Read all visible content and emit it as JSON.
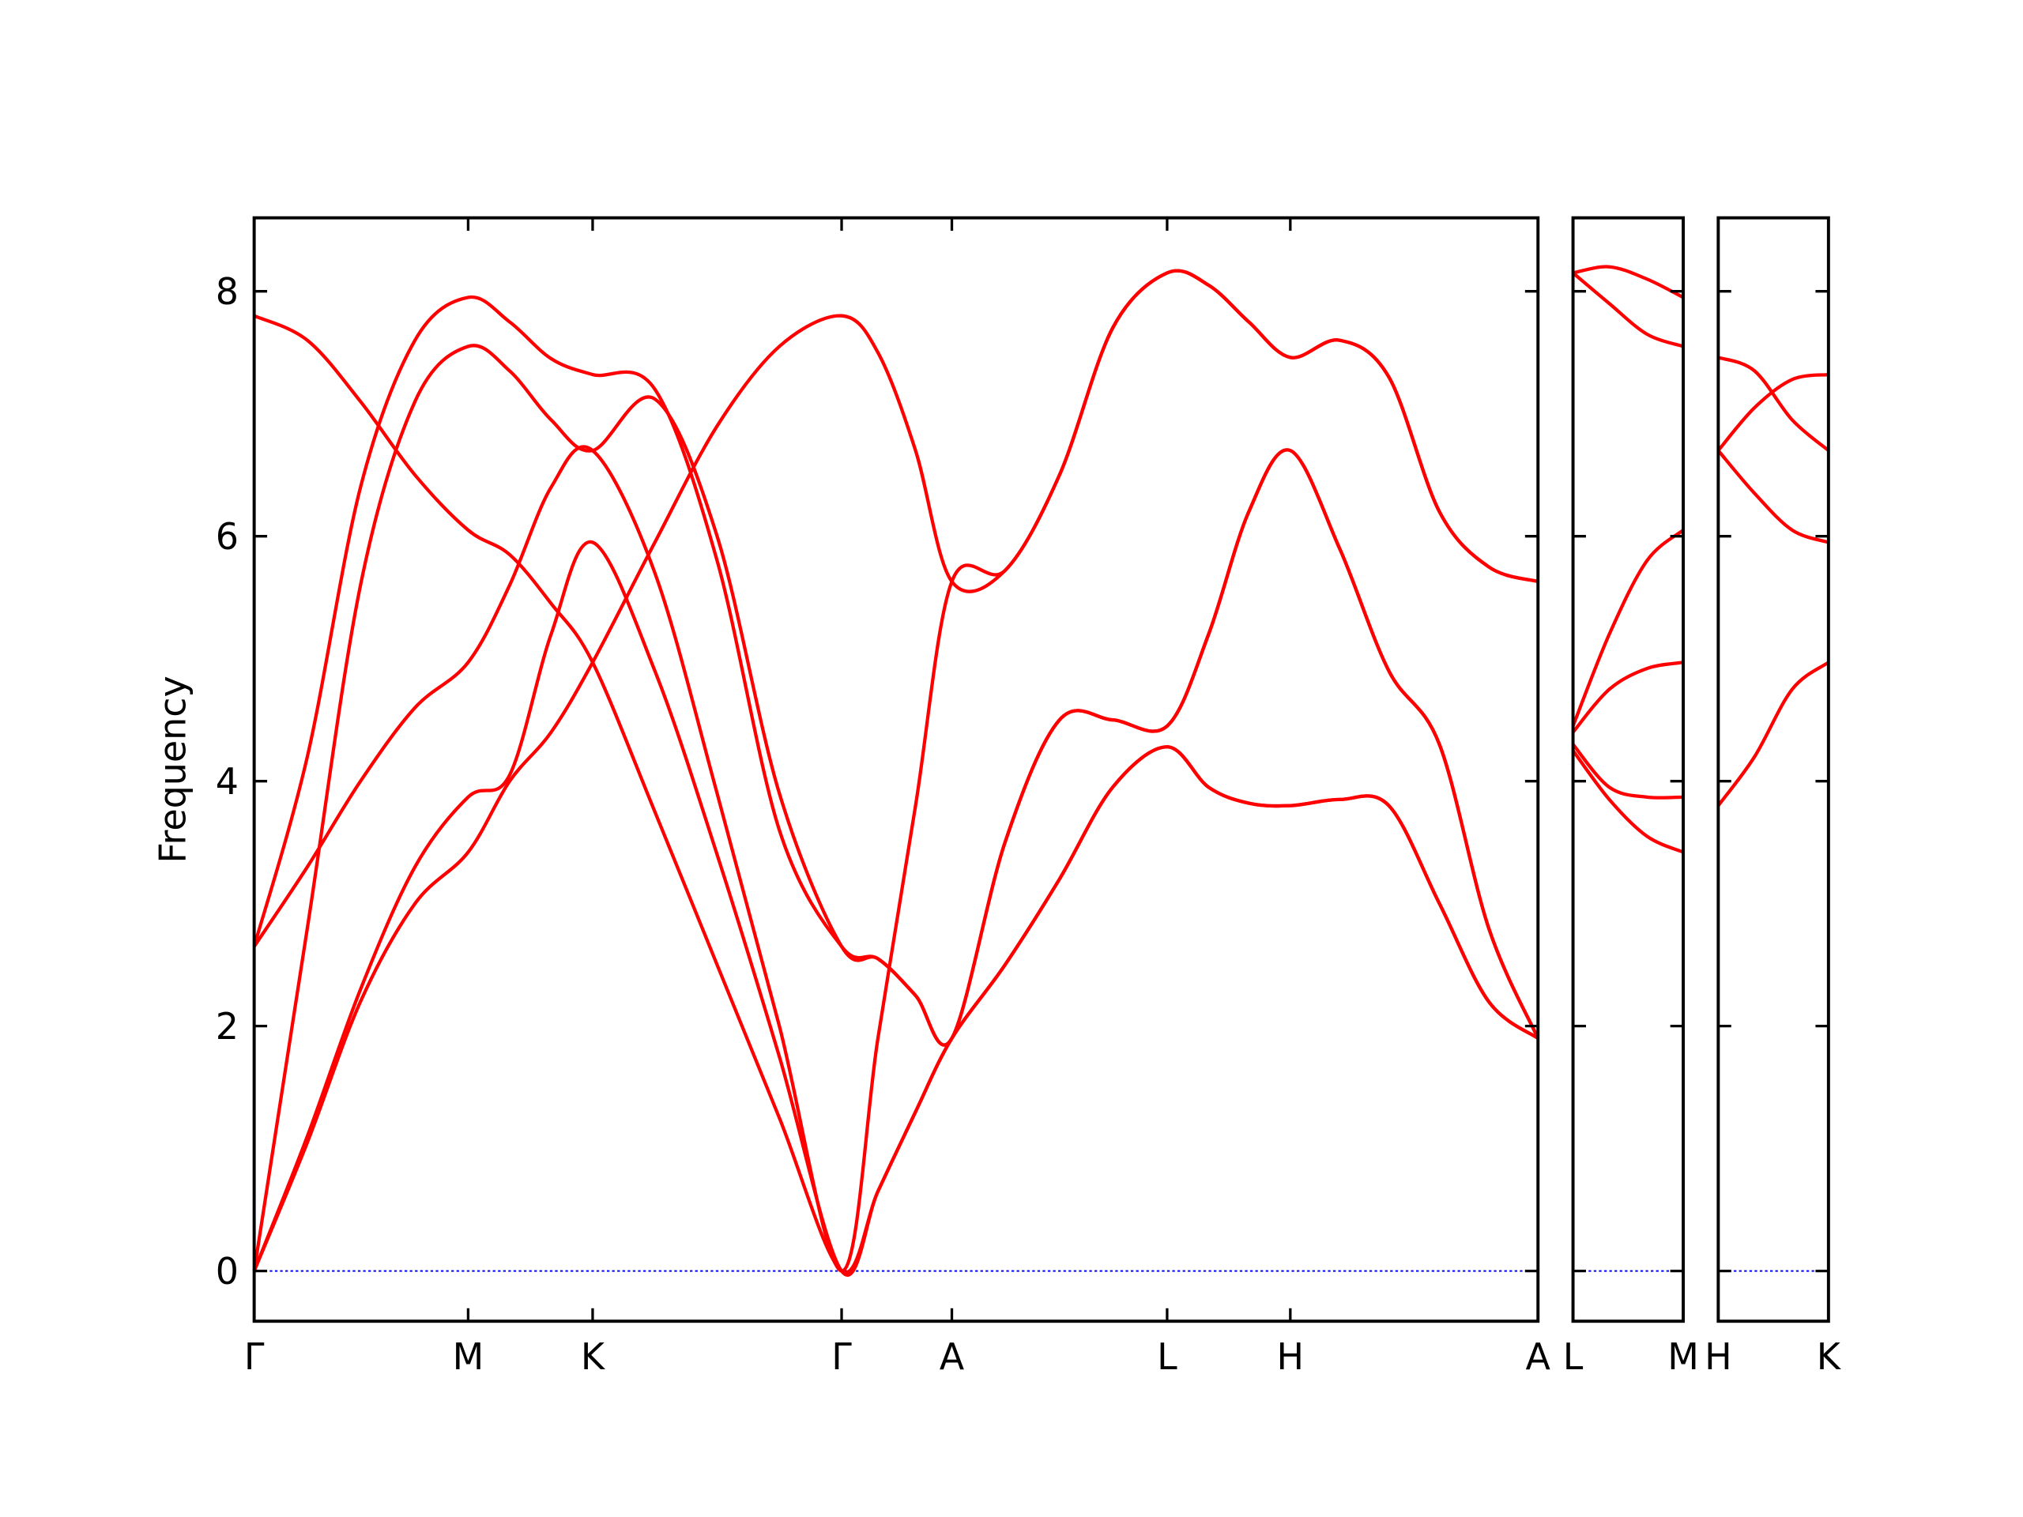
{
  "chart_data": [
    {
      "type": "line",
      "ylabel": "Frequency",
      "show_ytick_labels": true,
      "zero_line": true,
      "zero_line_color": "#0000ff",
      "x": [
        0,
        0.41,
        0.82,
        1.24,
        1.65,
        1.97,
        2.29,
        2.61,
        3.09,
        3.57,
        4.05,
        4.53,
        4.81,
        5.1,
        5.38,
        5.79,
        6.21,
        6.62,
        7.04,
        7.36,
        7.67,
        7.99,
        8.37,
        8.75,
        9.14,
        9.52,
        9.9
      ],
      "xlim": [
        0,
        9.9
      ],
      "xticks": [
        {
          "value": 0,
          "label": "Γ"
        },
        {
          "value": 1.65,
          "label": "M"
        },
        {
          "value": 2.61,
          "label": "K"
        },
        {
          "value": 4.53,
          "label": "Γ"
        },
        {
          "value": 5.38,
          "label": "A"
        },
        {
          "value": 7.04,
          "label": "L"
        },
        {
          "value": 7.99,
          "label": "H"
        },
        {
          "value": 9.9,
          "label": "A"
        }
      ],
      "ylim": [
        -0.41,
        8.6
      ],
      "yticks": [
        0,
        2,
        4,
        6,
        8
      ],
      "series": [
        {
          "color": "#ff0000",
          "values": [
            7.8,
            7.6,
            7.1,
            6.5,
            6.05,
            5.85,
            5.45,
            4.97,
            3.75,
            2.5,
            1.25,
            0,
            0.65,
            1.3,
            1.9,
            2.5,
            3.2,
            3.95,
            4.28,
            3.95,
            3.82,
            3.8,
            3.85,
            3.8,
            3.0,
            2.2,
            1.9
          ]
        },
        {
          "color": "#ff0000",
          "values": [
            2.65,
            4.2,
            6.4,
            7.6,
            7.95,
            7.75,
            7.45,
            7.32,
            7.2,
            5.8,
            3.6,
            2.65,
            2.55,
            2.25,
            1.9,
            3.5,
            4.5,
            4.5,
            4.45,
            5.2,
            6.2,
            6.7,
            5.9,
            4.9,
            4.3,
            2.8,
            1.9
          ]
        },
        {
          "color": "#ff0000",
          "values": [
            2.65,
            3.3,
            4.0,
            4.6,
            4.97,
            5.6,
            6.4,
            6.7,
            5.7,
            3.9,
            2.0,
            0,
            1.9,
            3.8,
            5.63,
            5.72,
            6.5,
            7.7,
            8.15,
            8.05,
            7.75,
            7.46,
            7.6,
            7.3,
            6.2,
            5.75,
            5.63
          ]
        },
        {
          "color": "#ff0000",
          "values": [
            0,
            2.8,
            5.6,
            7.1,
            7.55,
            7.35,
            6.95,
            6.7,
            7.12,
            6.0,
            3.9,
            2.65,
            2.55,
            2.25,
            1.9,
            3.5,
            4.5,
            4.5,
            4.45,
            5.2,
            6.2,
            6.7,
            5.9,
            4.9,
            4.3,
            2.8,
            1.9
          ]
        },
        {
          "color": "#ff0000",
          "values": [
            0,
            1.1,
            2.3,
            3.3,
            3.87,
            4.05,
            5.2,
            5.95,
            4.9,
            3.4,
            1.75,
            0,
            0.65,
            1.3,
            1.9,
            2.5,
            3.2,
            3.95,
            4.28,
            3.95,
            3.82,
            3.8,
            3.85,
            3.8,
            3.0,
            2.2,
            1.9
          ]
        },
        {
          "color": "#ff0000",
          "values": [
            0,
            1.05,
            2.2,
            3.0,
            3.42,
            4.0,
            4.4,
            4.97,
            5.95,
            6.9,
            7.55,
            7.8,
            7.5,
            6.7,
            5.63,
            5.72,
            6.5,
            7.7,
            8.15,
            8.05,
            7.75,
            7.46,
            7.6,
            7.3,
            6.2,
            5.75,
            5.63
          ]
        }
      ]
    },
    {
      "type": "line",
      "show_ytick_labels": false,
      "zero_line": true,
      "zero_line_color": "#0000ff",
      "x": [
        0,
        0.28,
        0.57,
        0.85
      ],
      "xlim": [
        0,
        0.85
      ],
      "xticks": [
        {
          "value": 0,
          "label": "L"
        },
        {
          "value": 0.85,
          "label": "M"
        }
      ],
      "ylim": [
        -0.41,
        8.6
      ],
      "yticks": [
        0,
        2,
        4,
        6,
        8
      ],
      "series": [
        {
          "color": "#ff0000",
          "values": [
            8.15,
            8.2,
            8.1,
            7.95
          ]
        },
        {
          "color": "#ff0000",
          "values": [
            8.15,
            7.9,
            7.65,
            7.55
          ]
        },
        {
          "color": "#ff0000",
          "values": [
            4.45,
            5.2,
            5.8,
            6.05
          ]
        },
        {
          "color": "#ff0000",
          "values": [
            4.4,
            4.75,
            4.92,
            4.97
          ]
        },
        {
          "color": "#ff0000",
          "values": [
            4.3,
            3.95,
            3.87,
            3.87
          ]
        },
        {
          "color": "#ff0000",
          "values": [
            4.25,
            3.85,
            3.55,
            3.42
          ]
        }
      ]
    },
    {
      "type": "line",
      "show_ytick_labels": false,
      "zero_line": true,
      "zero_line_color": "#0000ff",
      "x": [
        0,
        0.28,
        0.57,
        0.85
      ],
      "xlim": [
        0,
        0.85
      ],
      "xticks": [
        {
          "value": 0,
          "label": "H"
        },
        {
          "value": 0.85,
          "label": "K"
        }
      ],
      "ylim": [
        -0.41,
        8.6
      ],
      "yticks": [
        0,
        2,
        4,
        6,
        8
      ],
      "series": [
        {
          "color": "#ff0000",
          "values": [
            7.46,
            7.35,
            6.95,
            6.7
          ]
        },
        {
          "color": "#ff0000",
          "values": [
            6.7,
            7.05,
            7.28,
            7.32
          ]
        },
        {
          "color": "#ff0000",
          "values": [
            6.7,
            6.35,
            6.05,
            5.95
          ]
        },
        {
          "color": "#ff0000",
          "values": [
            3.8,
            4.2,
            4.75,
            4.97
          ]
        }
      ]
    }
  ]
}
